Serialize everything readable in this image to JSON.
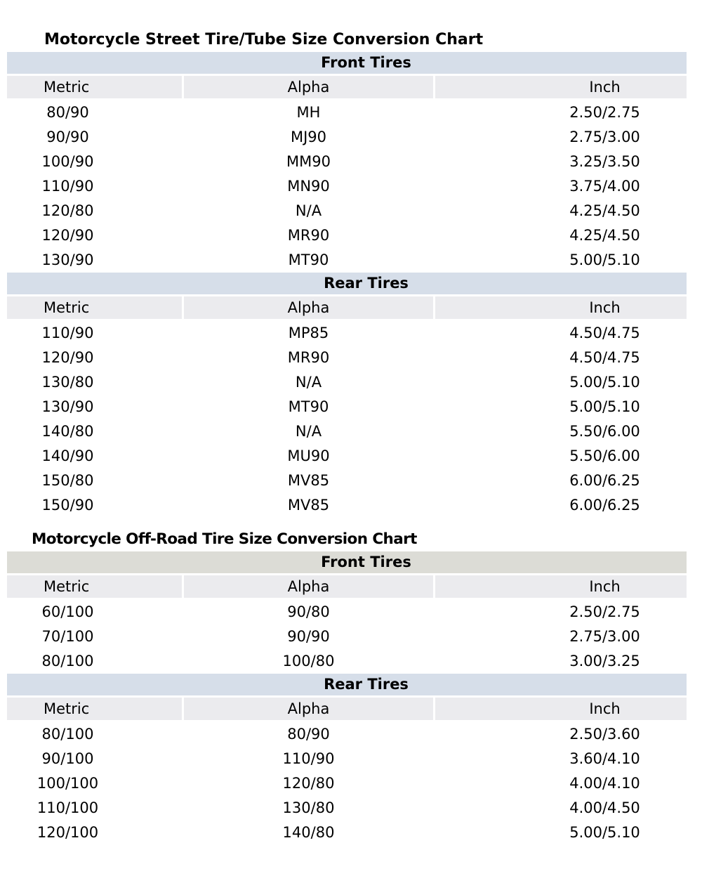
{
  "street": {
    "title": "Motorcycle Street Tire/Tube Size Conversion Chart",
    "sections": [
      {
        "label": "Front Tires",
        "columns": [
          "Metric",
          "Alpha",
          "Inch"
        ],
        "rows": [
          [
            "80/90",
            "MH",
            "2.50/2.75"
          ],
          [
            "90/90",
            "MJ90",
            "2.75/3.00"
          ],
          [
            "100/90",
            "MM90",
            "3.25/3.50"
          ],
          [
            "110/90",
            "MN90",
            "3.75/4.00"
          ],
          [
            "120/80",
            "N/A",
            "4.25/4.50"
          ],
          [
            "120/90",
            "MR90",
            "4.25/4.50"
          ],
          [
            "130/90",
            "MT90",
            "5.00/5.10"
          ]
        ]
      },
      {
        "label": "Rear Tires",
        "columns": [
          "Metric",
          "Alpha",
          "Inch"
        ],
        "rows": [
          [
            "110/90",
            "MP85",
            "4.50/4.75"
          ],
          [
            "120/90",
            "MR90",
            "4.50/4.75"
          ],
          [
            "130/80",
            "N/A",
            "5.00/5.10"
          ],
          [
            "130/90",
            "MT90",
            "5.00/5.10"
          ],
          [
            "140/80",
            "N/A",
            "5.50/6.00"
          ],
          [
            "140/90",
            "MU90",
            "5.50/6.00"
          ],
          [
            "150/80",
            "MV85",
            "6.00/6.25"
          ],
          [
            "150/90",
            "MV85",
            "6.00/6.25"
          ]
        ]
      }
    ]
  },
  "offroad": {
    "title": "Motorcycle Off-Road Tire Size Conversion Chart",
    "sections": [
      {
        "label": "Front Tires",
        "columns": [
          "Metric",
          "Alpha",
          "Inch"
        ],
        "rows": [
          [
            "60/100",
            "90/80",
            "2.50/2.75"
          ],
          [
            "70/100",
            "90/90",
            "2.75/3.00"
          ],
          [
            "80/100",
            "100/80",
            "3.00/3.25"
          ]
        ]
      },
      {
        "label": "Rear Tires",
        "columns": [
          "Metric",
          "Alpha",
          "Inch"
        ],
        "rows": [
          [
            "80/100",
            "80/90",
            "2.50/3.60"
          ],
          [
            "90/100",
            "110/90",
            "3.60/4.10"
          ],
          [
            "100/100",
            "120/80",
            "4.00/4.10"
          ],
          [
            "110/100",
            "130/80",
            "4.00/4.50"
          ],
          [
            "120/100",
            "140/80",
            "5.00/5.10"
          ]
        ]
      }
    ]
  }
}
